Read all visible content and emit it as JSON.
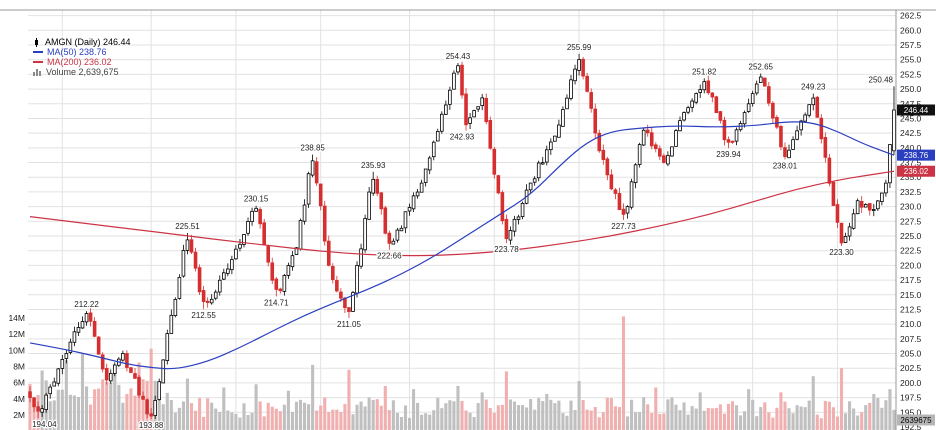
{
  "legend": {
    "symbol_line": "AMGN (Daily) 246.44",
    "ma50_line": "MA(50) 238.76",
    "ma200_line": "MA(200) 236.02",
    "volume_line": "Volume 2,639,675"
  },
  "chart_data": {
    "type": "candlestick",
    "symbol": "AMGN",
    "period": "Daily",
    "last_close": 246.44,
    "ma50_last": 238.76,
    "ma200_last": 236.02,
    "volume_last": 2639675,
    "axes": {
      "price_min": 192.5,
      "price_max": 262.5,
      "price_step": 2.5,
      "volume_labels": [
        [
          14,
          "14M"
        ],
        [
          12,
          "12M"
        ],
        [
          10,
          "10M"
        ],
        [
          8,
          "8M"
        ],
        [
          6,
          "6M"
        ],
        [
          4,
          "4M"
        ],
        [
          2,
          "2M"
        ]
      ]
    },
    "right_boxes": [
      {
        "label": "246.44",
        "price": 246.44,
        "type": "price"
      },
      {
        "label": "238.76",
        "price": 238.76,
        "type": "ma50"
      },
      {
        "label": "236.02",
        "price": 236.02,
        "type": "ma200"
      },
      {
        "label": "2639675",
        "type": "volume"
      }
    ],
    "candles": {
      "count": 215,
      "pivots": [
        [
          0,
          197.5,
          ""
        ],
        [
          2,
          194.04,
          "L"
        ],
        [
          8,
          204.0,
          ""
        ],
        [
          14,
          212.22,
          "H"
        ],
        [
          19,
          200.5,
          ""
        ],
        [
          23,
          205.0,
          ""
        ],
        [
          30,
          193.88,
          "L"
        ],
        [
          39,
          225.51,
          "H"
        ],
        [
          43,
          212.55,
          "L"
        ],
        [
          50,
          221.0,
          ""
        ],
        [
          56,
          230.15,
          "H"
        ],
        [
          61,
          214.71,
          "L"
        ],
        [
          66,
          223.0,
          ""
        ],
        [
          70,
          238.85,
          "H"
        ],
        [
          74,
          220.0,
          ""
        ],
        [
          79,
          211.05,
          "L"
        ],
        [
          85,
          235.93,
          "H"
        ],
        [
          89,
          222.66,
          "L"
        ],
        [
          97,
          234.0,
          ""
        ],
        [
          106,
          254.43,
          "H"
        ],
        [
          108,
          242.93,
          "L"
        ],
        [
          112,
          248.5,
          ""
        ],
        [
          118,
          223.78,
          "L"
        ],
        [
          124,
          234.0,
          ""
        ],
        [
          130,
          242.0,
          ""
        ],
        [
          136,
          255.99,
          "H"
        ],
        [
          141,
          239.5,
          ""
        ],
        [
          147,
          227.73,
          "L"
        ],
        [
          152,
          243.0,
          ""
        ],
        [
          157,
          237.5,
          ""
        ],
        [
          162,
          246.0,
          ""
        ],
        [
          167,
          251.82,
          "H"
        ],
        [
          173,
          239.94,
          "L"
        ],
        [
          177,
          246.0,
          ""
        ],
        [
          181,
          252.65,
          "H"
        ],
        [
          187,
          238.01,
          "L"
        ],
        [
          194,
          249.23,
          "H"
        ],
        [
          201,
          223.3,
          "L"
        ],
        [
          205,
          231.0,
          ""
        ],
        [
          209,
          229.5,
          ""
        ],
        [
          212,
          234.0,
          ""
        ],
        [
          214,
          246.44,
          ""
        ]
      ],
      "last_candle": {
        "open": 239.5,
        "high": 250.48,
        "low": 238.8,
        "close": 246.44
      }
    },
    "ma50_anchors": [
      [
        0,
        206.8
      ],
      [
        8,
        205.8
      ],
      [
        16,
        204.6
      ],
      [
        24,
        203.2
      ],
      [
        30,
        202.6
      ],
      [
        36,
        202.3
      ],
      [
        44,
        203.6
      ],
      [
        52,
        206.0
      ],
      [
        60,
        208.8
      ],
      [
        68,
        211.5
      ],
      [
        76,
        213.8
      ],
      [
        84,
        216.0
      ],
      [
        92,
        218.5
      ],
      [
        100,
        221.5
      ],
      [
        108,
        225.0
      ],
      [
        116,
        228.5
      ],
      [
        124,
        232.0
      ],
      [
        132,
        237.5
      ],
      [
        138,
        241.0
      ],
      [
        144,
        242.8
      ],
      [
        150,
        243.3
      ],
      [
        160,
        243.8
      ],
      [
        170,
        243.5
      ],
      [
        180,
        243.8
      ],
      [
        188,
        244.5
      ],
      [
        194,
        244.3
      ],
      [
        200,
        242.8
      ],
      [
        206,
        240.8
      ],
      [
        211,
        239.5
      ],
      [
        214,
        238.76
      ]
    ],
    "ma200_anchors": [
      [
        0,
        228.3
      ],
      [
        15,
        227.0
      ],
      [
        30,
        225.8
      ],
      [
        45,
        224.5
      ],
      [
        60,
        223.3
      ],
      [
        72,
        222.4
      ],
      [
        84,
        221.8
      ],
      [
        96,
        221.6
      ],
      [
        108,
        221.9
      ],
      [
        120,
        222.6
      ],
      [
        132,
        223.7
      ],
      [
        144,
        225.0
      ],
      [
        156,
        226.7
      ],
      [
        168,
        228.6
      ],
      [
        180,
        231.0
      ],
      [
        190,
        233.0
      ],
      [
        200,
        234.5
      ],
      [
        207,
        235.3
      ],
      [
        214,
        236.02
      ]
    ],
    "annotations": [
      {
        "i": 2,
        "p": 194.04,
        "text": "194.04",
        "pos": "below"
      },
      {
        "i": 14,
        "p": 212.22,
        "text": "212.22",
        "pos": "above"
      },
      {
        "i": 30,
        "p": 193.88,
        "text": "193.88",
        "pos": "below"
      },
      {
        "i": 39,
        "p": 225.51,
        "text": "225.51",
        "pos": "above"
      },
      {
        "i": 43,
        "p": 212.55,
        "text": "212.55",
        "pos": "below"
      },
      {
        "i": 56,
        "p": 230.15,
        "text": "230.15",
        "pos": "above"
      },
      {
        "i": 61,
        "p": 214.71,
        "text": "214.71",
        "pos": "below"
      },
      {
        "i": 70,
        "p": 238.85,
        "text": "238.85",
        "pos": "above"
      },
      {
        "i": 79,
        "p": 211.05,
        "text": "211.05",
        "pos": "below"
      },
      {
        "i": 85,
        "p": 235.93,
        "text": "235.93",
        "pos": "above"
      },
      {
        "i": 89,
        "p": 222.66,
        "text": "222.66",
        "pos": "below"
      },
      {
        "i": 106,
        "p": 254.43,
        "text": "254.43",
        "pos": "above"
      },
      {
        "i": 107,
        "p": 242.93,
        "text": "242.93",
        "pos": "below"
      },
      {
        "i": 118,
        "p": 223.78,
        "text": "223.78",
        "pos": "below"
      },
      {
        "i": 136,
        "p": 255.99,
        "text": "255.99",
        "pos": "above"
      },
      {
        "i": 147,
        "p": 227.73,
        "text": "227.73",
        "pos": "below"
      },
      {
        "i": 167,
        "p": 251.82,
        "text": "251.82",
        "pos": "above"
      },
      {
        "i": 173,
        "p": 239.94,
        "text": "239.94",
        "pos": "below"
      },
      {
        "i": 181,
        "p": 252.65,
        "text": "252.65",
        "pos": "above"
      },
      {
        "i": 187,
        "p": 238.01,
        "text": "238.01",
        "pos": "below"
      },
      {
        "i": 194,
        "p": 249.23,
        "text": "249.23",
        "pos": "above"
      },
      {
        "i": 201,
        "p": 223.3,
        "text": "223.30",
        "pos": "below"
      },
      {
        "i": 214,
        "p": 250.48,
        "text": "250.48",
        "pos": "above"
      }
    ],
    "volume_spikes": [
      {
        "i": 3,
        "v": 7.5
      },
      {
        "i": 9,
        "v": 8.8
      },
      {
        "i": 13,
        "v": 9.6
      },
      {
        "i": 18,
        "v": 6.4
      },
      {
        "i": 21,
        "v": 7.2
      },
      {
        "i": 27,
        "v": 8.5
      },
      {
        "i": 30,
        "v": 10.2
      },
      {
        "i": 39,
        "v": 6.5
      },
      {
        "i": 48,
        "v": 5.4
      },
      {
        "i": 56,
        "v": 5.8
      },
      {
        "i": 64,
        "v": 5.0
      },
      {
        "i": 70,
        "v": 8.2
      },
      {
        "i": 79,
        "v": 7.6
      },
      {
        "i": 88,
        "v": 5.6
      },
      {
        "i": 95,
        "v": 5.2
      },
      {
        "i": 106,
        "v": 5.6
      },
      {
        "i": 112,
        "v": 4.8
      },
      {
        "i": 118,
        "v": 7.4
      },
      {
        "i": 128,
        "v": 4.6
      },
      {
        "i": 136,
        "v": 6.2
      },
      {
        "i": 147,
        "v": 14.2
      },
      {
        "i": 155,
        "v": 5.4
      },
      {
        "i": 166,
        "v": 4.8
      },
      {
        "i": 178,
        "v": 5.2
      },
      {
        "i": 186,
        "v": 4.8
      },
      {
        "i": 194,
        "v": 6.8
      },
      {
        "i": 201,
        "v": 7.8
      },
      {
        "i": 209,
        "v": 4.6
      },
      {
        "i": 213,
        "v": 5.2
      },
      {
        "i": 214,
        "v": 2.64
      }
    ],
    "month_gridline_indexes": [
      8,
      30,
      51,
      72,
      94,
      115,
      136,
      157,
      179,
      200
    ],
    "colors": {
      "up_fill": "#ffffff",
      "up_stroke": "#000000",
      "down": "#d62f2f",
      "ma50": "#2a3fc0",
      "ma200": "#cc3344",
      "vol_up": "#c0c0c0",
      "vol_down": "#f0b0b0",
      "grid": "#e2e2e2",
      "axis_text": "#222222",
      "annotation": "#222222",
      "box_price_bg": "#111111",
      "box_ma50_bg": "#2a3fc0",
      "box_ma200_bg": "#cc3344",
      "box_vol_bg": "#b5b5b5",
      "legend_volume": "#444444"
    }
  }
}
